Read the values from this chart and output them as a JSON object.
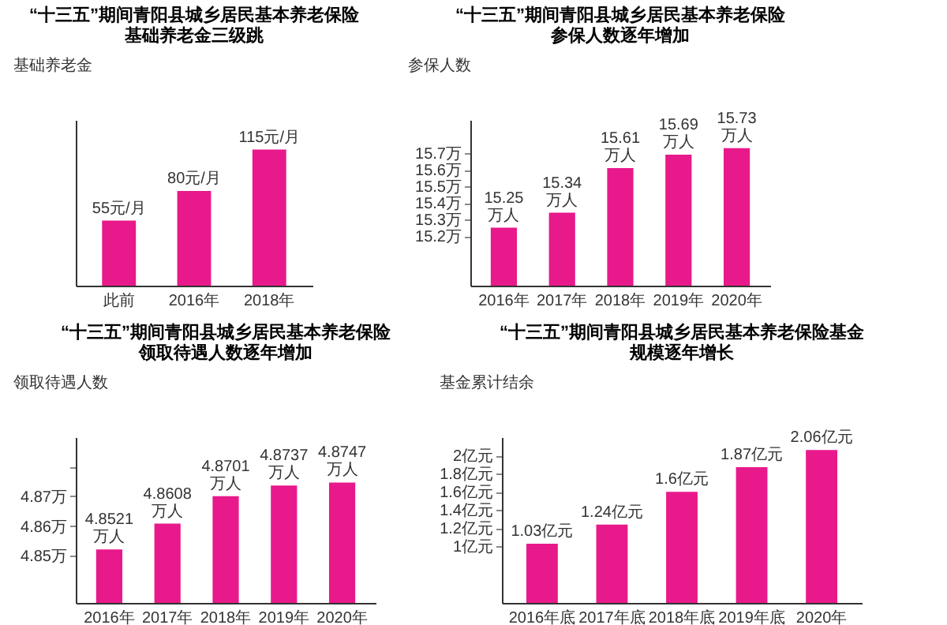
{
  "chart_data": [
    {
      "type": "bar",
      "title": "“十三五”期间青阳县城乡居民基本养老保险",
      "subtitle": "基础养老金三级跳",
      "ylabel": "基础养老金",
      "categories": [
        "此前",
        "2016年",
        "2018年"
      ],
      "values": [
        55,
        80,
        115
      ],
      "value_labels": [
        "55元/月",
        "80元/月",
        "115元/月"
      ],
      "color": "#e8198b",
      "ylim": [
        0,
        140
      ],
      "tick_labels": "x",
      "grid": false
    },
    {
      "type": "bar",
      "title": "“十三五”期间青阳县城乡居民基本养老保险",
      "subtitle": "参保人数逐年增加",
      "ylabel": "参保人数",
      "categories": [
        "2016年",
        "2017年",
        "2018年",
        "2019年",
        "2020年"
      ],
      "values": [
        15.25,
        15.34,
        15.61,
        15.69,
        15.73
      ],
      "value_labels": [
        "15.25万人",
        "15.34万人",
        "15.61万人",
        "15.69万人",
        "15.73万人"
      ],
      "color": "#e8198b",
      "ylim": [
        14.9,
        15.9
      ],
      "yticks": [
        {
          "value": 15.2,
          "label": "15.2万"
        },
        {
          "value": 15.3,
          "label": "15.3万"
        },
        {
          "value": 15.4,
          "label": "15.4万"
        },
        {
          "value": 15.5,
          "label": "15.5万"
        },
        {
          "value": 15.6,
          "label": "15.6万"
        },
        {
          "value": 15.7,
          "label": "15.7万"
        }
      ],
      "grid": false
    },
    {
      "type": "bar",
      "title": "“十三五”期间青阳县城乡居民基本养老保险",
      "subtitle": "领取待遇人数逐年增加",
      "ylabel": "领取待遇人数",
      "categories": [
        "2016年",
        "2017年",
        "2018年",
        "2019年",
        "2020年"
      ],
      "values": [
        4.8521,
        4.8608,
        4.8701,
        4.8737,
        4.8747
      ],
      "value_labels": [
        "4.8521万人",
        "4.8608万人",
        "4.8701万人",
        "4.8737万人",
        "4.8747万人"
      ],
      "color": "#e8198b",
      "ylim": [
        4.834,
        4.89
      ],
      "yticks": [
        {
          "value": 4.85,
          "label": "4.85万"
        },
        {
          "value": 4.86,
          "label": "4.86万"
        },
        {
          "value": 4.87,
          "label": "4.87万"
        },
        {
          "value": 4.88,
          "label": null
        }
      ],
      "grid": false
    },
    {
      "type": "bar",
      "title": "“十三五”期间青阳县城乡居民基本养老保险基金",
      "subtitle": "规模逐年增长",
      "ylabel": "基金累计结余",
      "categories": [
        "2016年底",
        "2017年底",
        "2018年底",
        "2019年底",
        "2020年"
      ],
      "values": [
        1.03,
        1.24,
        1.6,
        1.87,
        2.06
      ],
      "value_labels": [
        "1.03亿元",
        "1.24亿元",
        "1.6亿元",
        "1.87亿元",
        "2.06亿元"
      ],
      "color": "#e8198b",
      "ylim": [
        0.38,
        2.2
      ],
      "yticks": [
        {
          "value": 1,
          "label": "1亿元"
        },
        {
          "value": 1.2,
          "label": "1.2亿元"
        },
        {
          "value": 1.4,
          "label": "1.4亿元"
        },
        {
          "value": 1.6,
          "label": "1.6亿元"
        },
        {
          "value": 1.8,
          "label": "1.8亿元"
        },
        {
          "value": 2,
          "label": "2亿元"
        }
      ],
      "grid": false
    }
  ]
}
